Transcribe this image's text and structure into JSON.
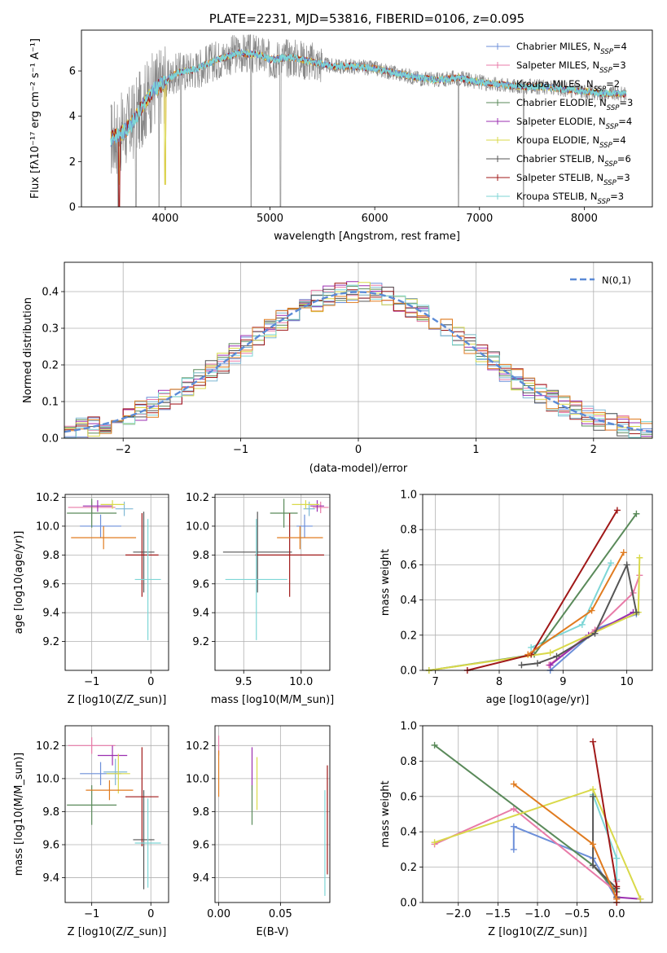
{
  "colors": {
    "Chabrier MILES": "#6c8fd9",
    "Salpeter MILES": "#e87ba8",
    "Kroupa MILES": "#7fb8d4",
    "Chabrier ELODIE": "#5a8a5a",
    "Salpeter ELODIE": "#9b2fb0",
    "Kroupa ELODIE": "#d9d94a",
    "Chabrier STELIB": "#555555",
    "Salpeter STELIB": "#a01818",
    "Kroupa STELIB": "#7dd6d6",
    "orange": "#e07b1f",
    "grey": "#888888",
    "dashed": "#5b8ad6"
  },
  "legend_models": [
    {
      "key": "Chabrier MILES",
      "imf": "Chabrier",
      "lib": "MILES",
      "n": "4"
    },
    {
      "key": "Salpeter MILES",
      "imf": "Salpeter",
      "lib": "MILES",
      "n": "3"
    },
    {
      "key": "Kroupa MILES",
      "imf": "Kroupa",
      "lib": "MILES",
      "n": "2"
    },
    {
      "key": "Chabrier ELODIE",
      "imf": "Chabrier",
      "lib": "ELODIE",
      "n": "3"
    },
    {
      "key": "Salpeter ELODIE",
      "imf": "Salpeter",
      "lib": "ELODIE",
      "n": "4"
    },
    {
      "key": "Kroupa ELODIE",
      "imf": "Kroupa",
      "lib": "ELODIE",
      "n": "4"
    },
    {
      "key": "Chabrier STELIB",
      "imf": "Chabrier",
      "lib": "STELIB",
      "n": "6"
    },
    {
      "key": "Salpeter STELIB",
      "imf": "Salpeter",
      "lib": "STELIB",
      "n": "3"
    },
    {
      "key": "Kroupa STELIB",
      "imf": "Kroupa",
      "lib": "STELIB",
      "n": "3"
    }
  ],
  "chart_data": [
    {
      "id": "spectrum",
      "type": "line",
      "title": "PLATE=2231, MJD=53816, FIBERID=0106, z=0.095",
      "xlabel": "wavelength [Angstrom, rest frame]",
      "ylabel": "Flux [f_λ 10^-17 erg cm^-2 s^-1 A^-1]",
      "xlim": [
        3200,
        8650
      ],
      "ylim": [
        0,
        7.8
      ],
      "xticks": [
        4000,
        5000,
        6000,
        7000,
        8000
      ],
      "yticks": [
        0,
        2,
        4,
        6
      ],
      "grid": false,
      "legend_position": "upper right",
      "continuum": [
        [
          3480,
          3.0
        ],
        [
          3600,
          3.3
        ],
        [
          3700,
          3.8
        ],
        [
          3800,
          4.6
        ],
        [
          3900,
          5.2
        ],
        [
          4000,
          5.5
        ],
        [
          4100,
          5.9
        ],
        [
          4300,
          6.1
        ],
        [
          4500,
          6.5
        ],
        [
          4700,
          6.8
        ],
        [
          4900,
          6.7
        ],
        [
          5000,
          6.5
        ],
        [
          5200,
          6.6
        ],
        [
          5400,
          6.4
        ],
        [
          5600,
          6.2
        ],
        [
          5800,
          6.2
        ],
        [
          6000,
          6.1
        ],
        [
          6200,
          5.9
        ],
        [
          6400,
          5.7
        ],
        [
          6600,
          5.6
        ],
        [
          6800,
          5.7
        ],
        [
          7000,
          5.5
        ],
        [
          7200,
          5.4
        ],
        [
          7400,
          5.3
        ],
        [
          7600,
          5.3
        ],
        [
          7800,
          5.2
        ],
        [
          8000,
          5.1
        ],
        [
          8200,
          5.0
        ],
        [
          8400,
          5.0
        ]
      ],
      "dips": [
        3550,
        3720,
        3940,
        4150,
        4820,
        5100,
        6800,
        7420
      ]
    },
    {
      "id": "residuals",
      "type": "histogram",
      "xlabel": "(data-model)/error",
      "ylabel": "Normed distribution",
      "xlim": [
        -2.5,
        2.5
      ],
      "ylim": [
        0,
        0.48
      ],
      "xticks": [
        -2,
        -1,
        0,
        1,
        2
      ],
      "yticks": [
        0.0,
        0.1,
        0.2,
        0.3,
        0.4
      ],
      "grid": true,
      "bin_width": 0.1,
      "gaussian_label": "N(0,1)",
      "legend_position": "upper right"
    },
    {
      "id": "age_vs_Z",
      "type": "errorbar",
      "xlabel": "Z [log10(Z/Z_sun)]",
      "ylabel": "age [log10(age/yr)]",
      "xlim": [
        -1.45,
        0.3
      ],
      "ylim": [
        9.0,
        10.22
      ],
      "xticks": [
        -1,
        0
      ],
      "yticks": [
        9.2,
        9.4,
        9.6,
        9.8,
        10.0,
        10.2
      ],
      "grid": true,
      "points": [
        {
          "model": "Chabrier MILES",
          "x": -0.85,
          "xerr": 0.35,
          "y": 10.0,
          "yerr": 0.08
        },
        {
          "model": "Salpeter MILES",
          "x": -1.0,
          "xerr": 0.4,
          "y": 10.13,
          "yerr": 0.04
        },
        {
          "model": "Kroupa MILES",
          "x": -0.45,
          "xerr": 0.15,
          "y": 10.12,
          "yerr": 0.05
        },
        {
          "model": "Chabrier ELODIE",
          "x": -1.0,
          "xerr": 0.42,
          "y": 10.09,
          "yerr": 0.1
        },
        {
          "model": "Salpeter ELODIE",
          "x": -0.9,
          "xerr": 0.25,
          "y": 10.14,
          "yerr": 0.04
        },
        {
          "model": "Kroupa ELODIE",
          "x": -0.65,
          "xerr": 0.2,
          "y": 10.15,
          "yerr": 0.03
        },
        {
          "model": "Chabrier STELIB",
          "x": -0.12,
          "xerr": 0.18,
          "y": 9.82,
          "yerr": 0.28
        },
        {
          "model": "Salpeter STELIB",
          "x": -0.15,
          "xerr": 0.28,
          "y": 9.8,
          "yerr": 0.29
        },
        {
          "model": "Kroupa STELIB",
          "x": -0.05,
          "xerr": 0.22,
          "y": 9.63,
          "yerr": 0.42
        },
        {
          "model": "orange",
          "x": -0.8,
          "xerr": 0.55,
          "y": 9.92,
          "yerr": 0.08
        }
      ]
    },
    {
      "id": "age_vs_mass",
      "type": "errorbar",
      "xlabel": "mass [log10(M/M_sun)]",
      "xlim": [
        9.25,
        10.25
      ],
      "ylim": [
        9.0,
        10.22
      ],
      "xticks": [
        9.5,
        10.0
      ],
      "yticks": [
        9.2,
        9.4,
        9.6,
        9.8,
        10.0,
        10.2
      ],
      "grid": true,
      "points": [
        {
          "model": "Chabrier MILES",
          "x": 10.03,
          "xerr": 0.07,
          "y": 10.0,
          "yerr": 0.08
        },
        {
          "model": "Salpeter MILES",
          "x": 10.17,
          "xerr": 0.07,
          "y": 10.13,
          "yerr": 0.04
        },
        {
          "model": "Kroupa MILES",
          "x": 10.07,
          "xerr": 0.05,
          "y": 10.12,
          "yerr": 0.05
        },
        {
          "model": "Chabrier ELODIE",
          "x": 9.85,
          "xerr": 0.12,
          "y": 10.09,
          "yerr": 0.1
        },
        {
          "model": "Salpeter ELODIE",
          "x": 10.14,
          "xerr": 0.06,
          "y": 10.14,
          "yerr": 0.04
        },
        {
          "model": "Kroupa ELODIE",
          "x": 10.04,
          "xerr": 0.12,
          "y": 10.15,
          "yerr": 0.03
        },
        {
          "model": "Chabrier STELIB",
          "x": 9.62,
          "xerr": 0.3,
          "y": 9.82,
          "yerr": 0.28
        },
        {
          "model": "Salpeter STELIB",
          "x": 9.9,
          "xerr": 0.3,
          "y": 9.8,
          "yerr": 0.29
        },
        {
          "model": "Kroupa STELIB",
          "x": 9.61,
          "xerr": 0.27,
          "y": 9.63,
          "yerr": 0.42
        },
        {
          "model": "orange",
          "x": 9.99,
          "xerr": 0.2,
          "y": 9.92,
          "yerr": 0.08
        }
      ]
    },
    {
      "id": "weight_vs_age",
      "type": "line",
      "xlabel": "age [log10(age/yr)]",
      "ylabel": "mass weight",
      "xlim": [
        6.8,
        10.4
      ],
      "ylim": [
        0,
        1
      ],
      "xticks": [
        7,
        8,
        9,
        10
      ],
      "yticks": [
        0.0,
        0.2,
        0.4,
        0.6,
        0.8,
        1.0
      ],
      "grid": true,
      "series": [
        {
          "model": "Chabrier MILES",
          "x": [
            8.8,
            9.55,
            10.15
          ],
          "y": [
            0.0,
            0.24,
            0.32
          ]
        },
        {
          "model": "Salpeter MILES",
          "x": [
            8.78,
            9.5,
            10.1,
            10.2
          ],
          "y": [
            0.03,
            0.23,
            0.44,
            0.54
          ]
        },
        {
          "model": "Kroupa STELIB",
          "x": [
            8.5,
            9.3,
            9.75
          ],
          "y": [
            0.13,
            0.26,
            0.61
          ]
        },
        {
          "model": "Chabrier ELODIE",
          "x": [
            6.9,
            8.55,
            10.15
          ],
          "y": [
            0.0,
            0.09,
            0.89
          ]
        },
        {
          "model": "Salpeter ELODIE",
          "x": [
            8.8,
            9.4,
            10.1
          ],
          "y": [
            0.03,
            0.2,
            0.33
          ]
        },
        {
          "model": "Kroupa ELODIE",
          "x": [
            6.9,
            8.8,
            10.18,
            10.2
          ],
          "y": [
            0.0,
            0.1,
            0.33,
            0.64
          ]
        },
        {
          "model": "Chabrier STELIB",
          "x": [
            8.35,
            8.6,
            8.9,
            9.5,
            10.0,
            10.15
          ],
          "y": [
            0.03,
            0.04,
            0.08,
            0.21,
            0.6,
            0.33
          ]
        },
        {
          "model": "Salpeter STELIB",
          "x": [
            7.5,
            8.5,
            9.85
          ],
          "y": [
            0.0,
            0.09,
            0.91
          ]
        },
        {
          "model": "orange",
          "x": [
            8.45,
            9.45,
            9.95
          ],
          "y": [
            0.09,
            0.34,
            0.67
          ]
        }
      ]
    },
    {
      "id": "mass_vs_Z",
      "type": "errorbar",
      "xlabel": "Z [log10(Z/Z_sun)]",
      "ylabel": "mass [log10(M/M_sun)]",
      "xlim": [
        -1.45,
        0.3
      ],
      "ylim": [
        9.25,
        10.32
      ],
      "xticks": [
        -1,
        0
      ],
      "yticks": [
        9.4,
        9.6,
        9.8,
        10.0,
        10.2
      ],
      "grid": true,
      "points": [
        {
          "model": "Chabrier MILES",
          "x": -0.85,
          "xerr": 0.35,
          "y": 10.03,
          "yerr": 0.07
        },
        {
          "model": "Salpeter MILES",
          "x": -1.0,
          "xerr": 0.4,
          "y": 10.2,
          "yerr": 0.05
        },
        {
          "model": "Kroupa MILES",
          "x": -0.6,
          "xerr": 0.2,
          "y": 10.04,
          "yerr": 0.08
        },
        {
          "model": "Chabrier ELODIE",
          "x": -1.0,
          "xerr": 0.42,
          "y": 9.84,
          "yerr": 0.12
        },
        {
          "model": "Salpeter ELODIE",
          "x": -0.65,
          "xerr": 0.25,
          "y": 10.14,
          "yerr": 0.06
        },
        {
          "model": "Kroupa ELODIE",
          "x": -0.55,
          "xerr": 0.2,
          "y": 10.03,
          "yerr": 0.12
        },
        {
          "model": "Chabrier STELIB",
          "x": -0.12,
          "xerr": 0.18,
          "y": 9.63,
          "yerr": 0.3
        },
        {
          "model": "Salpeter STELIB",
          "x": -0.15,
          "xerr": 0.28,
          "y": 9.89,
          "yerr": 0.3
        },
        {
          "model": "Kroupa STELIB",
          "x": -0.05,
          "xerr": 0.22,
          "y": 9.61,
          "yerr": 0.27
        },
        {
          "model": "orange",
          "x": -0.7,
          "xerr": 0.4,
          "y": 9.93,
          "yerr": 0.06
        }
      ]
    },
    {
      "id": "ebv",
      "type": "errorbar",
      "xlabel": "E(B-V)",
      "xlim": [
        -0.003,
        0.09
      ],
      "ylim": [
        9.25,
        10.32
      ],
      "xticks": [
        0.0,
        0.05
      ],
      "yticks": [
        9.4,
        9.6,
        9.8,
        10.0,
        10.2
      ],
      "grid": true,
      "points": [
        {
          "model": "Salpeter MILES",
          "x": 0.0,
          "y": 10.2,
          "yerr": 0.06
        },
        {
          "model": "orange",
          "x": 0.0,
          "y": 10.03,
          "yerr": 0.14
        },
        {
          "model": "Salpeter ELODIE",
          "x": 0.027,
          "y": 10.06,
          "yerr": 0.13
        },
        {
          "model": "Chabrier ELODIE",
          "x": 0.027,
          "y": 9.84,
          "yerr": 0.12
        },
        {
          "model": "Kroupa ELODIE",
          "x": 0.031,
          "y": 9.97,
          "yerr": 0.16
        },
        {
          "model": "Kroupa STELIB",
          "x": 0.086,
          "y": 9.61,
          "yerr": 0.32
        },
        {
          "model": "Salpeter STELIB",
          "x": 0.088,
          "y": 9.75,
          "yerr": 0.33
        }
      ]
    },
    {
      "id": "weight_vs_Z",
      "type": "line",
      "xlabel": "Z [log10(Z/Z_sun)]",
      "ylabel": "mass weight",
      "xlim": [
        -2.45,
        0.45
      ],
      "ylim": [
        0,
        1
      ],
      "xticks": [
        -2.0,
        -1.5,
        -1.0,
        -0.5,
        0.0
      ],
      "yticks": [
        0.0,
        0.2,
        0.4,
        0.6,
        0.8,
        1.0
      ],
      "grid": true,
      "series": [
        {
          "model": "Chabrier MILES",
          "x": [
            -1.3,
            -1.3,
            -0.3,
            0.0
          ],
          "y": [
            0.3,
            0.43,
            0.25,
            0.02
          ]
        },
        {
          "model": "Salpeter MILES",
          "x": [
            -2.3,
            -1.3,
            0.0,
            0.0
          ],
          "y": [
            0.33,
            0.53,
            0.06,
            0.12
          ]
        },
        {
          "model": "Kroupa STELIB",
          "x": [
            -0.3,
            0.0,
            0.0
          ],
          "y": [
            0.61,
            0.25,
            0.13
          ]
        },
        {
          "model": "Chabrier ELODIE",
          "x": [
            -2.3,
            -0.3,
            0.0
          ],
          "y": [
            0.89,
            0.21,
            0.06
          ]
        },
        {
          "model": "Salpeter ELODIE",
          "x": [
            0.0,
            0.3
          ],
          "y": [
            0.03,
            0.02
          ]
        },
        {
          "model": "Kroupa ELODIE",
          "x": [
            -2.3,
            -0.3,
            0.3
          ],
          "y": [
            0.34,
            0.64,
            0.02
          ]
        },
        {
          "model": "Chabrier STELIB",
          "x": [
            -0.3,
            -0.3,
            0.0,
            0.0
          ],
          "y": [
            0.6,
            0.21,
            0.08,
            0.03
          ]
        },
        {
          "model": "Salpeter STELIB",
          "x": [
            -0.3,
            0.0,
            0.0
          ],
          "y": [
            0.91,
            0.09,
            0.0
          ]
        },
        {
          "model": "orange",
          "x": [
            -1.3,
            -0.3,
            0.0
          ],
          "y": [
            0.67,
            0.33,
            0.02
          ]
        }
      ]
    }
  ]
}
